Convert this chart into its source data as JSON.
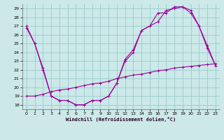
{
  "xlabel": "Windchill (Refroidissement éolien,°C)",
  "bg_color": "#cce8e8",
  "grid_color": "#99cccc",
  "line_color": "#990099",
  "xlim": [
    -0.5,
    23.5
  ],
  "ylim": [
    17.5,
    29.5
  ],
  "xticks": [
    0,
    1,
    2,
    3,
    4,
    5,
    6,
    7,
    8,
    9,
    10,
    11,
    12,
    13,
    14,
    15,
    16,
    17,
    18,
    19,
    20,
    21,
    22,
    23
  ],
  "yticks": [
    18,
    19,
    20,
    21,
    22,
    23,
    24,
    25,
    26,
    27,
    28,
    29
  ],
  "line1_x": [
    0,
    1,
    2,
    3,
    4,
    5,
    6,
    7,
    8,
    9,
    10,
    11,
    12,
    13,
    14,
    15,
    16,
    17,
    18,
    19,
    20,
    21,
    22,
    23
  ],
  "line1_y": [
    27,
    25,
    22,
    19,
    18.5,
    18.5,
    18,
    18,
    18.5,
    18.5,
    19,
    20.5,
    23,
    24,
    26.5,
    27,
    28.5,
    28.5,
    29.2,
    29.2,
    28.5,
    27.0,
    24.5,
    22.5
  ],
  "line2_x": [
    0,
    1,
    2,
    3,
    4,
    5,
    6,
    7,
    8,
    9,
    10,
    11,
    12,
    13,
    14,
    15,
    16,
    17,
    18,
    19,
    20,
    21,
    22,
    23
  ],
  "line2_y": [
    19.0,
    19.0,
    19.2,
    19.5,
    19.7,
    19.8,
    20.0,
    20.2,
    20.4,
    20.5,
    20.7,
    21.0,
    21.2,
    21.4,
    21.5,
    21.7,
    21.9,
    22.0,
    22.2,
    22.3,
    22.4,
    22.5,
    22.6,
    22.7
  ],
  "line3_x": [
    0,
    1,
    2,
    3,
    4,
    5,
    6,
    7,
    8,
    9,
    10,
    11,
    12,
    13,
    14,
    15,
    16,
    17,
    18,
    19,
    20,
    21,
    22,
    23
  ],
  "line3_y": [
    26.8,
    25.0,
    22.2,
    19.0,
    18.5,
    18.5,
    18.0,
    18.0,
    18.5,
    18.5,
    19.0,
    20.5,
    23.2,
    24.3,
    26.5,
    27.0,
    27.5,
    28.8,
    29.0,
    29.2,
    28.8,
    27.0,
    24.8,
    22.5
  ]
}
